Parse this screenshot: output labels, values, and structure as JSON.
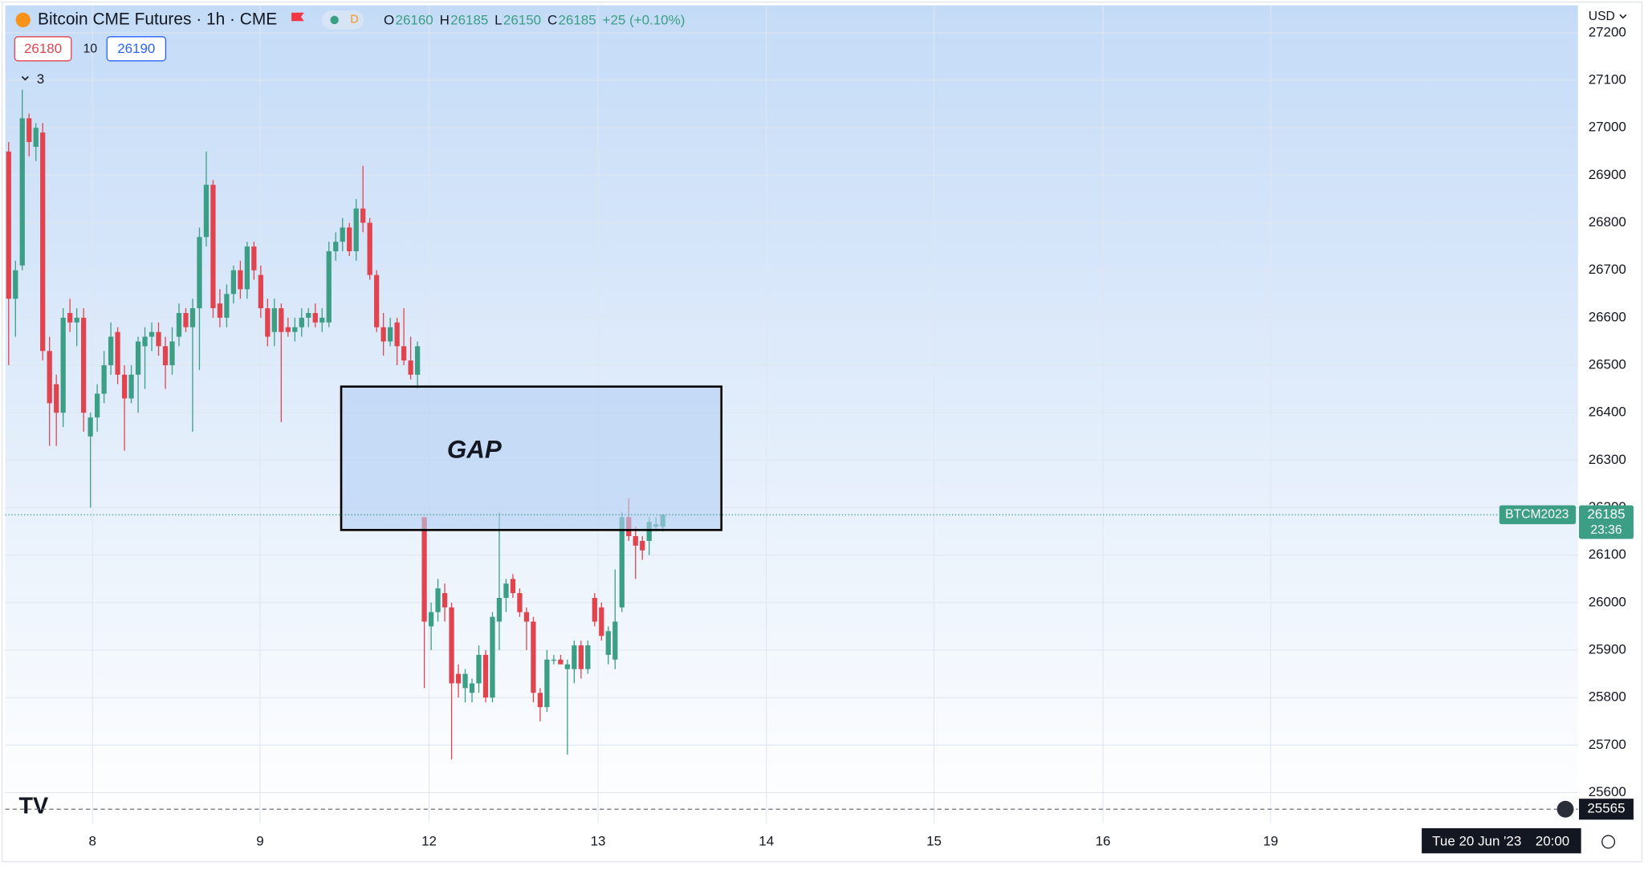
{
  "header": {
    "symbol": "Bitcoin CME Futures · 1h · CME",
    "session": "D",
    "ohlc": [
      {
        "label": "O",
        "value": 26160
      },
      {
        "label": "H",
        "value": 26185
      },
      {
        "label": "L",
        "value": 26150
      },
      {
        "label": "C",
        "value": 26185
      }
    ],
    "change": "+25 (+0.10%)",
    "bid": 26180,
    "spread": 10,
    "ask": 26190,
    "indicators_count": 3,
    "currency": "USD"
  },
  "chart_data": {
    "type": "candlestick",
    "up_color": "#3d9e86",
    "down_color": "#e0454f",
    "grid": true,
    "x": [
      0,
      1,
      2,
      3,
      4,
      5,
      6,
      7,
      8,
      9,
      10,
      11,
      12,
      13,
      14,
      15,
      16,
      17,
      18,
      19,
      20,
      21,
      22,
      23,
      24,
      25,
      26,
      27,
      28,
      29,
      30,
      31,
      32,
      33,
      34,
      35,
      36,
      37,
      38,
      39,
      40,
      41,
      42,
      43,
      44,
      45,
      46,
      47,
      48,
      49,
      50,
      51,
      52,
      53,
      54,
      55,
      56,
      57,
      58,
      59,
      60,
      61,
      62,
      63,
      64,
      65,
      66,
      67,
      68,
      69,
      70,
      71,
      72,
      73,
      74,
      75,
      76,
      77,
      78,
      79,
      80,
      81,
      82,
      83,
      84,
      85,
      86,
      87,
      88,
      89,
      90,
      91,
      92,
      93,
      94,
      95,
      96
    ],
    "open": [
      26950,
      26640,
      26710,
      27020,
      26960,
      26990,
      26530,
      26460,
      26400,
      26610,
      26590,
      26600,
      26350,
      26390,
      26440,
      26500,
      26570,
      26480,
      26430,
      26480,
      26540,
      26560,
      26570,
      26540,
      26500,
      26560,
      26610,
      26580,
      26620,
      26770,
      26880,
      26630,
      26600,
      26650,
      26700,
      26660,
      26750,
      26690,
      26620,
      26570,
      26620,
      26580,
      26570,
      26580,
      26600,
      26610,
      26590,
      26590,
      26740,
      26760,
      26790,
      26740,
      26830,
      26800,
      26690,
      26580,
      26550,
      26590,
      26540,
      26510,
      26480,
      26180,
      25950,
      25980,
      26020,
      25990,
      25850,
      25820,
      25810,
      25830,
      25890,
      25800,
      25960,
      26010,
      26050,
      26020,
      25980,
      25960,
      25810,
      25780,
      25880,
      25880,
      25860,
      25860,
      25910,
      25860,
      26010,
      25990,
      25890,
      25880,
      25990,
      26180,
      26140,
      26130,
      26130,
      26160,
      26160
    ],
    "high": [
      26970,
      26720,
      27080,
      27030,
      27010,
      27010,
      26560,
      26480,
      26620,
      26640,
      26620,
      26620,
      26400,
      26460,
      26530,
      26590,
      26580,
      26500,
      26500,
      26560,
      26580,
      26590,
      26590,
      26560,
      26580,
      26630,
      26620,
      26640,
      26790,
      26950,
      26890,
      26660,
      26670,
      26710,
      26720,
      26760,
      26760,
      26710,
      26640,
      26640,
      26630,
      26600,
      26600,
      26620,
      26620,
      26630,
      26620,
      26760,
      26780,
      26810,
      26800,
      26850,
      26920,
      26810,
      26700,
      26610,
      26600,
      26600,
      26620,
      26560,
      26550,
      26180,
      26000,
      26050,
      26040,
      26000,
      25870,
      25860,
      25840,
      25910,
      25900,
      25980,
      26190,
      26050,
      26060,
      26030,
      25990,
      25970,
      25820,
      25900,
      25890,
      25890,
      25880,
      25920,
      25920,
      25920,
      26020,
      26000,
      25950,
      26070,
      26190,
      26220,
      26160,
      26140,
      26180,
      26180,
      26185
    ],
    "low": [
      26500,
      26560,
      26700,
      26940,
      26930,
      26510,
      26330,
      26330,
      26370,
      26570,
      26540,
      26360,
      26200,
      26360,
      26420,
      26480,
      26460,
      26320,
      26420,
      26400,
      26450,
      26530,
      26520,
      26450,
      26480,
      26540,
      26570,
      26360,
      26490,
      26750,
      26600,
      26580,
      26580,
      26630,
      26640,
      26640,
      26680,
      26600,
      26540,
      26540,
      26380,
      26560,
      26550,
      26560,
      26580,
      26580,
      26570,
      26580,
      26720,
      26740,
      26730,
      26720,
      26780,
      26680,
      26570,
      26520,
      26540,
      26500,
      26500,
      26470,
      26450,
      25820,
      25900,
      25960,
      25960,
      25670,
      25800,
      25790,
      25790,
      25810,
      25790,
      25790,
      25900,
      25980,
      26010,
      25970,
      25900,
      25790,
      25750,
      25770,
      25870,
      25870,
      25680,
      25830,
      25840,
      25850,
      25950,
      25920,
      25870,
      25860,
      25980,
      26130,
      26050,
      26090,
      26100,
      26150,
      26150
    ],
    "close": [
      26640,
      26700,
      27020,
      26970,
      27000,
      26530,
      26420,
      26400,
      26600,
      26590,
      26600,
      26400,
      26390,
      26440,
      26500,
      26560,
      26480,
      26430,
      26480,
      26550,
      26560,
      26570,
      26540,
      26500,
      26550,
      26610,
      26580,
      26620,
      26770,
      26880,
      26620,
      26600,
      26650,
      26700,
      26660,
      26750,
      26700,
      26620,
      26560,
      26620,
      26570,
      26570,
      26580,
      26600,
      26610,
      26590,
      26600,
      26740,
      26760,
      26790,
      26740,
      26830,
      26800,
      26690,
      26580,
      26550,
      26580,
      26540,
      26510,
      26480,
      26540,
      25960,
      25980,
      26030,
      25990,
      25830,
      25830,
      25850,
      25830,
      25890,
      25800,
      25970,
      26010,
      26040,
      26020,
      25980,
      25960,
      25810,
      25780,
      25880,
      25880,
      25870,
      25870,
      25910,
      25860,
      25910,
      25960,
      25930,
      25940,
      25960,
      26180,
      26140,
      26120,
      26110,
      26170,
      26165,
      26185
    ],
    "xlim": [
      -0.5,
      230.3
    ],
    "xticks": [
      {
        "value": 12.3,
        "label": "8"
      },
      {
        "value": 36.9,
        "label": "9"
      },
      {
        "value": 61.7,
        "label": "12"
      },
      {
        "value": 86.5,
        "label": "13"
      },
      {
        "value": 111.2,
        "label": "14"
      },
      {
        "value": 135.8,
        "label": "15"
      },
      {
        "value": 160.6,
        "label": "16"
      },
      {
        "value": 185.2,
        "label": "19"
      }
    ],
    "ylim": [
      25536,
      27258
    ],
    "yticks": [
      25600,
      25700,
      25800,
      25900,
      26000,
      26100,
      26200,
      26300,
      26400,
      26500,
      26600,
      26700,
      26800,
      26900,
      27000,
      27100,
      27200
    ],
    "annotations": [
      {
        "text": "GAP",
        "x_start": 48.8,
        "x_end": 104.6,
        "y_top": 26455,
        "y_bottom": 26153
      }
    ],
    "last_price": {
      "symbol": "BTCM2023",
      "value": 26185,
      "countdown": "23:36"
    },
    "crosshair": {
      "value": 25565,
      "time_label": "Tue 20 Jun '23",
      "time": "20:00"
    }
  }
}
